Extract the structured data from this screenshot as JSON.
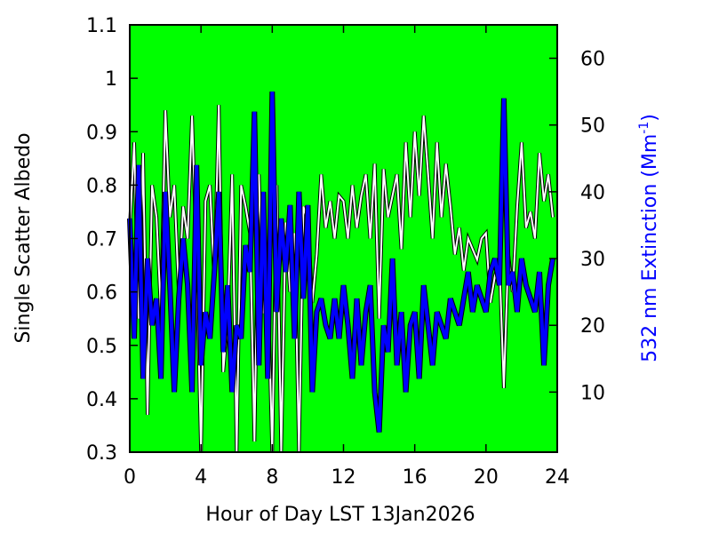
{
  "chart_data": {
    "type": "line",
    "title": "",
    "xlabel": "Hour of Day LST 13Jan2026",
    "ylabel_left": "Single Scatter Albedo",
    "ylabel_right_prefix": "532 nm Extinction (Mm",
    "ylabel_right_sup": "-1",
    "ylabel_right_suffix": ")",
    "xlim": [
      0,
      24
    ],
    "ylim_left": [
      0.3,
      1.1
    ],
    "ylim_right": [
      1,
      65
    ],
    "xticks": [
      0,
      4,
      8,
      12,
      16,
      20,
      24
    ],
    "yticks_left": [
      0.3,
      0.4,
      0.5,
      0.6,
      0.7,
      0.8,
      0.9,
      1,
      1.1
    ],
    "yticks_left_labels": [
      "0.3",
      "0.4",
      "0.5",
      "0.6",
      "0.7",
      "0.8",
      "0.9",
      "1",
      "1.1"
    ],
    "yticks_right": [
      10,
      20,
      30,
      40,
      50,
      60
    ],
    "grid": false,
    "plot_background": "#00ff00",
    "series": [
      {
        "axis": "left",
        "color": "#ffffff",
        "outline": "#000000",
        "x": [
          0.0,
          0.25,
          0.5,
          0.75,
          1.0,
          1.25,
          1.5,
          1.75,
          2.0,
          2.25,
          2.5,
          2.75,
          3.0,
          3.25,
          3.5,
          3.75,
          4.0,
          4.25,
          4.5,
          4.75,
          5.0,
          5.25,
          5.5,
          5.75,
          6.0,
          6.25,
          6.5,
          6.75,
          7.0,
          7.25,
          7.5,
          7.75,
          8.0,
          8.25,
          8.5,
          8.75,
          9.0,
          9.25,
          9.5,
          9.75,
          10.0,
          10.25,
          10.5,
          10.75,
          11.0,
          11.25,
          11.5,
          11.75,
          12.0,
          12.25,
          12.5,
          12.75,
          13.0,
          13.25,
          13.5,
          13.75,
          14.0,
          14.25,
          14.5,
          14.75,
          15.0,
          15.25,
          15.5,
          15.75,
          16.0,
          16.25,
          16.5,
          16.75,
          17.0,
          17.25,
          17.5,
          17.75,
          18.0,
          18.25,
          18.5,
          18.75,
          19.0,
          19.25,
          19.5,
          19.75,
          20.0,
          20.25,
          20.5,
          20.75,
          21.0,
          21.25,
          21.5,
          21.75,
          22.0,
          22.25,
          22.5,
          22.75,
          23.0,
          23.25,
          23.5,
          23.75
        ],
        "values": [
          0.72,
          0.88,
          0.55,
          0.86,
          0.37,
          0.8,
          0.74,
          0.56,
          0.94,
          0.74,
          0.8,
          0.6,
          0.76,
          0.7,
          0.93,
          0.66,
          0.3,
          0.77,
          0.8,
          0.62,
          0.95,
          0.45,
          0.55,
          0.82,
          0.3,
          0.8,
          0.76,
          0.71,
          0.32,
          0.82,
          0.56,
          0.62,
          0.3,
          0.8,
          0.3,
          0.73,
          0.6,
          0.71,
          0.3,
          0.76,
          0.73,
          0.58,
          0.67,
          0.82,
          0.72,
          0.77,
          0.7,
          0.78,
          0.77,
          0.7,
          0.8,
          0.72,
          0.78,
          0.82,
          0.7,
          0.84,
          0.55,
          0.83,
          0.74,
          0.78,
          0.82,
          0.68,
          0.88,
          0.74,
          0.9,
          0.78,
          0.93,
          0.82,
          0.7,
          0.88,
          0.74,
          0.84,
          0.76,
          0.67,
          0.72,
          0.64,
          0.7,
          0.68,
          0.66,
          0.7,
          0.71,
          0.58,
          0.63,
          0.66,
          0.42,
          0.67,
          0.6,
          0.76,
          0.88,
          0.72,
          0.75,
          0.7,
          0.86,
          0.77,
          0.82,
          0.74
        ]
      },
      {
        "axis": "right",
        "color": "#0000ff",
        "outline": "#000000",
        "x": [
          0.0,
          0.25,
          0.5,
          0.75,
          1.0,
          1.25,
          1.5,
          1.75,
          2.0,
          2.25,
          2.5,
          2.75,
          3.0,
          3.25,
          3.5,
          3.75,
          4.0,
          4.25,
          4.5,
          4.75,
          5.0,
          5.25,
          5.5,
          5.75,
          6.0,
          6.25,
          6.5,
          6.75,
          7.0,
          7.25,
          7.5,
          7.75,
          8.0,
          8.25,
          8.5,
          8.75,
          9.0,
          9.25,
          9.5,
          9.75,
          10.0,
          10.25,
          10.5,
          10.75,
          11.0,
          11.25,
          11.5,
          11.75,
          12.0,
          12.25,
          12.5,
          12.75,
          13.0,
          13.25,
          13.5,
          13.75,
          14.0,
          14.25,
          14.5,
          14.75,
          15.0,
          15.25,
          15.5,
          15.75,
          16.0,
          16.25,
          16.5,
          16.75,
          17.0,
          17.25,
          17.5,
          17.75,
          18.0,
          18.25,
          18.5,
          18.75,
          19.0,
          19.25,
          19.5,
          19.75,
          20.0,
          20.25,
          20.5,
          20.75,
          21.0,
          21.25,
          21.5,
          21.75,
          22.0,
          22.25,
          22.5,
          22.75,
          23.0,
          23.25,
          23.5,
          23.75
        ],
        "values": [
          36,
          18,
          44,
          12,
          30,
          20,
          24,
          12,
          40,
          26,
          10,
          24,
          33,
          26,
          10,
          44,
          14,
          22,
          18,
          28,
          40,
          16,
          26,
          10,
          20,
          18,
          32,
          28,
          52,
          14,
          40,
          12,
          55,
          22,
          36,
          28,
          38,
          18,
          40,
          24,
          38,
          10,
          22,
          24,
          20,
          18,
          24,
          18,
          26,
          20,
          12,
          24,
          14,
          22,
          26,
          10,
          4,
          20,
          16,
          30,
          14,
          22,
          10,
          20,
          22,
          12,
          26,
          20,
          14,
          22,
          20,
          18,
          24,
          22,
          20,
          24,
          28,
          22,
          26,
          24,
          22,
          28,
          30,
          26,
          54,
          26,
          28,
          22,
          30,
          26,
          24,
          22,
          28,
          14,
          26,
          30
        ]
      }
    ]
  }
}
